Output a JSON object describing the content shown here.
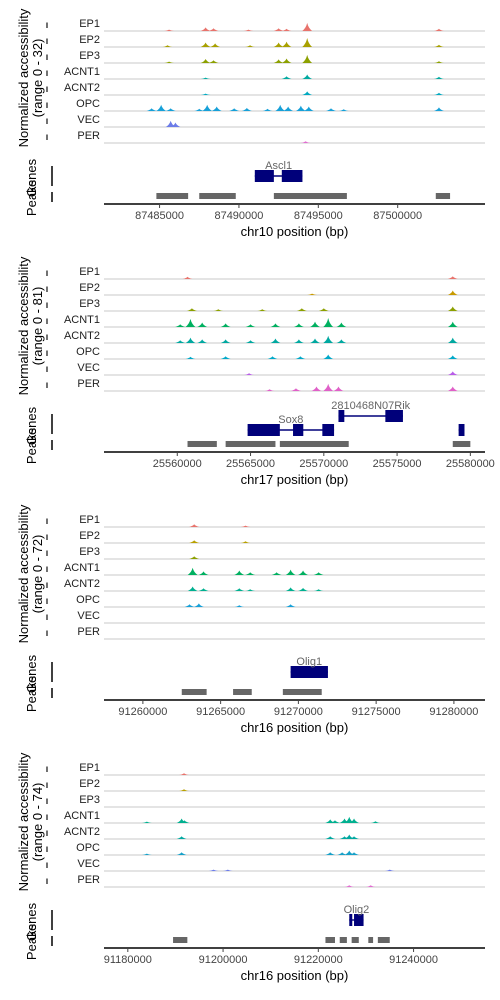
{
  "chart_data": [
    {
      "type": "area",
      "subtype": "genome-coverage-track",
      "ylabel": "Normalized accessibility",
      "range_label": "(range 0 - 32)",
      "genes_label": "Genes",
      "peaks_label": "Peaks",
      "xlabel": "chr10 position (bp)",
      "xlim": [
        87481500,
        87505500
      ],
      "xticks": [
        87485000,
        87490000,
        87495000,
        87500000
      ],
      "xtick_labels": [
        "87485000",
        "87490000",
        "87495000",
        "87500000"
      ],
      "series": [
        {
          "name": "EP1",
          "color": "#e8736c",
          "peaks": [
            [
              87485600,
              0.15
            ],
            [
              87487900,
              0.4
            ],
            [
              87488400,
              0.3
            ],
            [
              87490600,
              0.15
            ],
            [
              87492500,
              0.3
            ],
            [
              87493000,
              0.25
            ],
            [
              87494300,
              0.9
            ],
            [
              87502600,
              0.25
            ]
          ]
        },
        {
          "name": "EP2",
          "color": "#a8a000",
          "peaks": [
            [
              87485500,
              0.2
            ],
            [
              87487900,
              0.5
            ],
            [
              87488500,
              0.4
            ],
            [
              87490700,
              0.2
            ],
            [
              87492500,
              0.5
            ],
            [
              87493000,
              0.6
            ],
            [
              87494300,
              1.0
            ],
            [
              87502600,
              0.25
            ]
          ]
        },
        {
          "name": "EP3",
          "color": "#8ca000",
          "peaks": [
            [
              87485600,
              0.15
            ],
            [
              87487900,
              0.45
            ],
            [
              87488400,
              0.3
            ],
            [
              87492500,
              0.4
            ],
            [
              87493000,
              0.5
            ],
            [
              87494300,
              0.9
            ],
            [
              87502600,
              0.2
            ]
          ]
        },
        {
          "name": "ACNT1",
          "color": "#00a9a0",
          "peaks": [
            [
              87487900,
              0.15
            ],
            [
              87493000,
              0.3
            ],
            [
              87494300,
              0.5
            ],
            [
              87502600,
              0.25
            ]
          ]
        },
        {
          "name": "ACNT2",
          "color": "#00a9c0",
          "peaks": [
            [
              87487900,
              0.15
            ],
            [
              87494300,
              0.4
            ],
            [
              87502600,
              0.25
            ]
          ]
        },
        {
          "name": "OPC",
          "color": "#16a0d8",
          "peaks": [
            [
              87484500,
              0.3
            ],
            [
              87485100,
              0.7
            ],
            [
              87485700,
              0.3
            ],
            [
              87487500,
              0.25
            ],
            [
              87488000,
              0.7
            ],
            [
              87488600,
              0.5
            ],
            [
              87489700,
              0.3
            ],
            [
              87490500,
              0.35
            ],
            [
              87491800,
              0.25
            ],
            [
              87492600,
              0.7
            ],
            [
              87493100,
              0.5
            ],
            [
              87493900,
              0.6
            ],
            [
              87494400,
              0.5
            ],
            [
              87495800,
              0.3
            ],
            [
              87496600,
              0.2
            ],
            [
              87502600,
              0.4
            ]
          ]
        },
        {
          "name": "VEC",
          "color": "#6c7ce8",
          "peaks": [
            [
              87485700,
              0.7
            ],
            [
              87486000,
              0.5
            ]
          ]
        },
        {
          "name": "PER",
          "color": "#e06ed0",
          "peaks": [
            [
              87494200,
              0.2
            ]
          ]
        }
      ],
      "genes": [
        {
          "name": "Ascl1",
          "start": 87491000,
          "end": 87494000,
          "exons": [
            [
              87491000,
              87492200
            ],
            [
              87492700,
              87494000
            ]
          ],
          "strand": "-"
        }
      ],
      "peak_regions": [
        [
          87484800,
          87486800
        ],
        [
          87487500,
          87489800
        ],
        [
          87492200,
          87496800
        ],
        [
          87502400,
          87503300
        ]
      ]
    },
    {
      "type": "area",
      "subtype": "genome-coverage-track",
      "ylabel": "Normalized accessibility",
      "range_label": "(range 0 - 81)",
      "genes_label": "Genes",
      "peaks_label": "Peaks",
      "xlabel": "chr17 position (bp)",
      "xlim": [
        25555000,
        25581000
      ],
      "xticks": [
        25560000,
        25565000,
        25570000,
        25575000,
        25580000
      ],
      "xtick_labels": [
        "25560000",
        "25565000",
        "25570000",
        "25575000",
        "25580000"
      ],
      "series": [
        {
          "name": "EP1",
          "color": "#e8736c",
          "peaks": [
            [
              25560700,
              0.25
            ],
            [
              25578800,
              0.3
            ]
          ]
        },
        {
          "name": "EP2",
          "color": "#c89a00",
          "peaks": [
            [
              25569200,
              0.15
            ],
            [
              25578800,
              0.5
            ]
          ]
        },
        {
          "name": "EP3",
          "color": "#8ca000",
          "peaks": [
            [
              25561000,
              0.3
            ],
            [
              25562800,
              0.2
            ],
            [
              25565800,
              0.2
            ],
            [
              25568500,
              0.3
            ],
            [
              25570000,
              0.3
            ],
            [
              25578800,
              0.5
            ]
          ]
        },
        {
          "name": "ACNT1",
          "color": "#00b060",
          "peaks": [
            [
              25560200,
              0.3
            ],
            [
              25560900,
              0.9
            ],
            [
              25561700,
              0.5
            ],
            [
              25563300,
              0.4
            ],
            [
              25565000,
              0.3
            ],
            [
              25566700,
              0.4
            ],
            [
              25568300,
              0.4
            ],
            [
              25569400,
              0.6
            ],
            [
              25570300,
              1.0
            ],
            [
              25571200,
              0.5
            ],
            [
              25578800,
              0.6
            ]
          ]
        },
        {
          "name": "ACNT2",
          "color": "#00a8a0",
          "peaks": [
            [
              25560200,
              0.3
            ],
            [
              25560900,
              0.6
            ],
            [
              25561700,
              0.4
            ],
            [
              25563300,
              0.4
            ],
            [
              25565000,
              0.3
            ],
            [
              25566700,
              0.5
            ],
            [
              25568300,
              0.4
            ],
            [
              25569400,
              0.5
            ],
            [
              25570300,
              0.8
            ],
            [
              25571200,
              0.4
            ],
            [
              25578800,
              0.6
            ]
          ]
        },
        {
          "name": "OPC",
          "color": "#00a8c8",
          "peaks": [
            [
              25560900,
              0.25
            ],
            [
              25563300,
              0.3
            ],
            [
              25566500,
              0.3
            ],
            [
              25568400,
              0.3
            ],
            [
              25570300,
              0.5
            ],
            [
              25578800,
              0.4
            ]
          ]
        },
        {
          "name": "VEC",
          "color": "#b85ce8",
          "peaks": [
            [
              25564900,
              0.2
            ],
            [
              25578800,
              0.4
            ]
          ]
        },
        {
          "name": "PER",
          "color": "#e060c8",
          "peaks": [
            [
              25566300,
              0.2
            ],
            [
              25568100,
              0.3
            ],
            [
              25569500,
              0.5
            ],
            [
              25570300,
              0.8
            ],
            [
              25571000,
              0.5
            ],
            [
              25578800,
              0.5
            ]
          ]
        }
      ],
      "genes": [
        {
          "name": "Sox8",
          "start": 25564800,
          "end": 25570700,
          "exons": [
            [
              25564800,
              25567000
            ],
            [
              25567900,
              25568600
            ],
            [
              25569900,
              25570700
            ]
          ],
          "strand": "+",
          "row": 1
        },
        {
          "name": "2810468N07Rik",
          "start": 25571000,
          "end": 25575400,
          "exons": [
            [
              25571000,
              25571400
            ],
            [
              25574200,
              25575400
            ]
          ],
          "strand": "+",
          "row": 0
        },
        {
          "name": "",
          "start": 25579200,
          "end": 25579600,
          "exons": [
            [
              25579200,
              25579600
            ]
          ],
          "strand": "+",
          "row": 1
        }
      ],
      "peak_regions": [
        [
          25560700,
          25562700
        ],
        [
          25563300,
          25566700
        ],
        [
          25567000,
          25571700
        ],
        [
          25578800,
          25580000
        ]
      ]
    },
    {
      "type": "area",
      "subtype": "genome-coverage-track",
      "ylabel": "Normalized accessibility",
      "range_label": "(range 0 - 72)",
      "genes_label": "Genes",
      "peaks_label": "Peaks",
      "xlabel": "chr16 position (bp)",
      "xlim": [
        91257500,
        91282000
      ],
      "xticks": [
        91260000,
        91265000,
        91270000,
        91275000,
        91280000
      ],
      "xtick_labels": [
        "91260000",
        "91265000",
        "91270000",
        "91275000",
        "91280000"
      ],
      "series": [
        {
          "name": "EP1",
          "color": "#e8736c",
          "peaks": [
            [
              91263300,
              0.3
            ],
            [
              91266600,
              0.15
            ]
          ]
        },
        {
          "name": "EP2",
          "color": "#b8a000",
          "peaks": [
            [
              91263300,
              0.3
            ],
            [
              91266600,
              0.2
            ]
          ]
        },
        {
          "name": "EP3",
          "color": "#8ca000",
          "peaks": [
            [
              91263300,
              0.3
            ]
          ]
        },
        {
          "name": "ACNT1",
          "color": "#00b060",
          "peaks": [
            [
              91263200,
              0.8
            ],
            [
              91263900,
              0.4
            ],
            [
              91266200,
              0.5
            ],
            [
              91266900,
              0.3
            ],
            [
              91268600,
              0.3
            ],
            [
              91269500,
              0.6
            ],
            [
              91270300,
              0.5
            ],
            [
              91271300,
              0.3
            ]
          ]
        },
        {
          "name": "ACNT2",
          "color": "#00b090",
          "peaks": [
            [
              91263200,
              0.5
            ],
            [
              91263900,
              0.3
            ],
            [
              91266200,
              0.3
            ],
            [
              91266900,
              0.2
            ],
            [
              91269500,
              0.4
            ],
            [
              91270300,
              0.35
            ],
            [
              91271300,
              0.2
            ]
          ]
        },
        {
          "name": "OPC",
          "color": "#16a0d8",
          "peaks": [
            [
              91263000,
              0.3
            ],
            [
              91263600,
              0.4
            ],
            [
              91266200,
              0.2
            ],
            [
              91269500,
              0.3
            ]
          ]
        },
        {
          "name": "VEC",
          "color": "#6c7ce8",
          "peaks": []
        },
        {
          "name": "PER",
          "color": "#e06ed0",
          "peaks": []
        }
      ],
      "genes": [
        {
          "name": "Olig1",
          "start": 91269500,
          "end": 91271900,
          "exons": [
            [
              91269500,
              91271900
            ]
          ],
          "strand": "+"
        }
      ],
      "peak_regions": [
        [
          91262500,
          91264100
        ],
        [
          91265800,
          91267000
        ],
        [
          91269000,
          91271500
        ]
      ]
    },
    {
      "type": "area",
      "subtype": "genome-coverage-track",
      "ylabel": "Normalized accessibility",
      "range_label": "(range 0 - 74)",
      "genes_label": "Genes",
      "peaks_label": "Peaks",
      "xlabel": "chr16 position (bp)",
      "xlim": [
        91175000,
        91255000
      ],
      "xticks": [
        91180000,
        91200000,
        91220000,
        91240000
      ],
      "xtick_labels": [
        "91180000",
        "91200000",
        "91220000",
        "91240000"
      ],
      "series": [
        {
          "name": "EP1",
          "color": "#e8736c",
          "peaks": [
            [
              91191800,
              0.2
            ]
          ]
        },
        {
          "name": "EP2",
          "color": "#b8a000",
          "peaks": [
            [
              91191800,
              0.2
            ]
          ]
        },
        {
          "name": "EP3",
          "color": "#8ca000",
          "peaks": []
        },
        {
          "name": "ACNT1",
          "color": "#00b090",
          "peaks": [
            [
              91184000,
              0.15
            ],
            [
              91191300,
              0.5
            ],
            [
              91191900,
              0.3
            ],
            [
              91222500,
              0.4
            ],
            [
              91223500,
              0.3
            ],
            [
              91225500,
              0.5
            ],
            [
              91226500,
              0.7
            ],
            [
              91227500,
              0.5
            ],
            [
              91232000,
              0.2
            ]
          ]
        },
        {
          "name": "ACNT2",
          "color": "#00a8a0",
          "peaks": [
            [
              91191300,
              0.3
            ],
            [
              91222500,
              0.3
            ],
            [
              91225500,
              0.3
            ],
            [
              91226500,
              0.5
            ],
            [
              91227500,
              0.3
            ]
          ]
        },
        {
          "name": "OPC",
          "color": "#16a0c8",
          "peaks": [
            [
              91184000,
              0.15
            ],
            [
              91191300,
              0.3
            ],
            [
              91222500,
              0.3
            ],
            [
              91225000,
              0.3
            ],
            [
              91226500,
              0.5
            ],
            [
              91227500,
              0.3
            ]
          ]
        },
        {
          "name": "VEC",
          "color": "#6c7ce8",
          "peaks": [
            [
              91198000,
              0.15
            ],
            [
              91201000,
              0.15
            ],
            [
              91235000,
              0.15
            ]
          ]
        },
        {
          "name": "PER",
          "color": "#e06ed0",
          "peaks": [
            [
              91226500,
              0.2
            ],
            [
              91231000,
              0.2
            ]
          ]
        }
      ],
      "genes": [
        {
          "name": "Olig2",
          "start": 91226500,
          "end": 91229500,
          "exons": [
            [
              91226500,
              91226900
            ],
            [
              91227500,
              91229500
            ]
          ],
          "strand": "+"
        }
      ],
      "peak_regions": [
        [
          91189500,
          91192500
        ],
        [
          91221500,
          91223500
        ],
        [
          91224500,
          91226000
        ],
        [
          91227000,
          91228500
        ],
        [
          91230500,
          91231500
        ],
        [
          91232500,
          91235000
        ]
      ]
    }
  ]
}
